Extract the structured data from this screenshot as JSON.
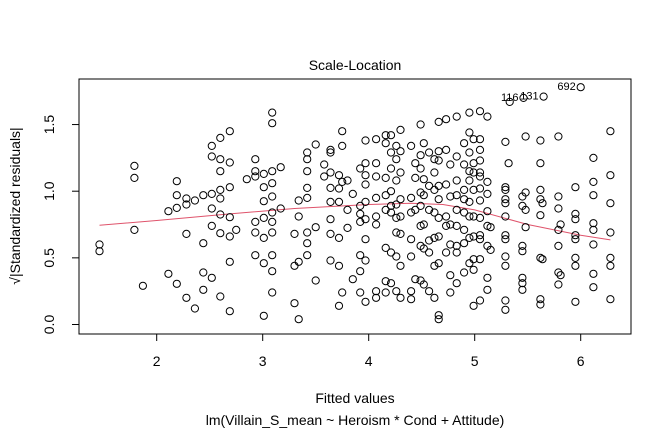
{
  "chart_data": {
    "type": "scatter",
    "title": "Scale-Location",
    "xlabel": "Fitted values",
    "ylabel": "√|Standardized residuals|",
    "subtitle": "lm(Villain_S_mean ~ Heroism * Cond + Attitude)",
    "xlim": [
      1.27,
      6.4
    ],
    "ylim": [
      0.0,
      1.8
    ],
    "xticks": [
      "2",
      "3",
      "4",
      "5",
      "6"
    ],
    "yticks": [
      "0.0",
      "0.5",
      "1.0",
      "1.5"
    ],
    "grid": false,
    "colors": {
      "points": "#000000",
      "smooth": "#DF536B"
    },
    "points": [
      [
        1.46,
        0.6
      ],
      [
        1.46,
        0.55
      ],
      [
        1.79,
        1.19
      ],
      [
        1.79,
        1.1
      ],
      [
        1.79,
        0.71
      ],
      [
        1.87,
        0.29
      ],
      [
        2.11,
        0.85
      ],
      [
        2.11,
        0.38
      ],
      [
        2.19,
        1.075
      ],
      [
        2.19,
        0.97
      ],
      [
        2.19,
        0.875
      ],
      [
        2.19,
        0.305
      ],
      [
        2.28,
        0.945
      ],
      [
        2.28,
        0.9
      ],
      [
        2.28,
        0.68
      ],
      [
        2.28,
        0.2
      ],
      [
        2.36,
        0.93
      ],
      [
        2.36,
        0.12
      ],
      [
        2.44,
        0.97
      ],
      [
        2.44,
        0.61
      ],
      [
        2.44,
        0.39
      ],
      [
        2.44,
        0.26
      ],
      [
        2.52,
        1.34
      ],
      [
        2.52,
        1.26
      ],
      [
        2.52,
        0.98
      ],
      [
        2.52,
        0.87
      ],
      [
        2.52,
        0.74
      ],
      [
        2.52,
        0.35
      ],
      [
        2.6,
        1.4
      ],
      [
        2.6,
        1.24
      ],
      [
        2.6,
        1.15
      ],
      [
        2.6,
        1.01
      ],
      [
        2.6,
        0.945
      ],
      [
        2.6,
        0.825
      ],
      [
        2.6,
        0.685
      ],
      [
        2.6,
        0.21
      ],
      [
        2.69,
        1.45
      ],
      [
        2.69,
        1.215
      ],
      [
        2.69,
        1.03
      ],
      [
        2.69,
        0.805
      ],
      [
        2.69,
        0.66
      ],
      [
        2.69,
        0.47
      ],
      [
        2.69,
        0.1
      ],
      [
        2.75,
        0.71
      ],
      [
        2.85,
        1.09
      ],
      [
        2.93,
        1.24
      ],
      [
        2.93,
        1.15
      ],
      [
        2.93,
        1.11
      ],
      [
        2.93,
        0.77
      ],
      [
        2.93,
        0.69
      ],
      [
        2.93,
        0.52
      ],
      [
        3.01,
        1.13
      ],
      [
        3.01,
        1.03
      ],
      [
        3.01,
        0.925
      ],
      [
        3.01,
        0.8
      ],
      [
        3.01,
        0.65
      ],
      [
        3.01,
        0.46
      ],
      [
        3.01,
        0.065
      ],
      [
        3.09,
        1.59
      ],
      [
        3.09,
        1.51
      ],
      [
        3.09,
        1.15
      ],
      [
        3.09,
        1.06
      ],
      [
        3.09,
        0.96
      ],
      [
        3.09,
        0.84
      ],
      [
        3.09,
        0.77
      ],
      [
        3.09,
        0.69
      ],
      [
        3.09,
        0.52
      ],
      [
        3.09,
        0.4
      ],
      [
        3.09,
        0.24
      ],
      [
        3.17,
        1.18
      ],
      [
        3.17,
        0.87
      ],
      [
        3.3,
        0.68
      ],
      [
        3.3,
        0.44
      ],
      [
        3.3,
        0.16
      ],
      [
        3.34,
        0.93
      ],
      [
        3.34,
        0.81
      ],
      [
        3.34,
        0.47
      ],
      [
        3.34,
        0.04
      ],
      [
        3.42,
        1.29
      ],
      [
        3.42,
        1.24
      ],
      [
        3.42,
        1.15
      ],
      [
        3.42,
        1.025
      ],
      [
        3.42,
        0.95
      ],
      [
        3.42,
        0.69
      ],
      [
        3.42,
        0.61
      ],
      [
        3.42,
        0.52
      ],
      [
        3.5,
        1.35
      ],
      [
        3.5,
        0.73
      ],
      [
        3.5,
        0.33
      ],
      [
        3.58,
        1.2
      ],
      [
        3.58,
        1.11
      ],
      [
        3.64,
        1.31
      ],
      [
        3.64,
        1.29
      ],
      [
        3.64,
        1.14
      ],
      [
        3.64,
        1.025
      ],
      [
        3.64,
        0.92
      ],
      [
        3.64,
        0.79
      ],
      [
        3.64,
        0.68
      ],
      [
        3.64,
        0.48
      ],
      [
        3.72,
        1.12
      ],
      [
        3.72,
        1.02
      ],
      [
        3.72,
        0.92
      ],
      [
        3.72,
        0.65
      ],
      [
        3.72,
        0.44
      ],
      [
        3.72,
        0.14
      ],
      [
        3.75,
        1.45
      ],
      [
        3.75,
        1.34
      ],
      [
        3.75,
        1.07
      ],
      [
        3.75,
        0.24
      ],
      [
        3.8,
        1.08
      ],
      [
        3.8,
        0.86
      ],
      [
        3.8,
        0.725
      ],
      [
        3.85,
        0.98
      ],
      [
        3.85,
        0.34
      ],
      [
        3.92,
        1.17
      ],
      [
        3.92,
        0.89
      ],
      [
        3.92,
        0.83
      ],
      [
        3.92,
        0.77
      ],
      [
        3.92,
        0.52
      ],
      [
        3.92,
        0.4
      ],
      [
        3.92,
        0.24
      ],
      [
        3.97,
        1.38
      ],
      [
        3.97,
        1.21
      ],
      [
        3.97,
        1.12
      ],
      [
        3.97,
        1.05
      ],
      [
        3.97,
        0.92
      ],
      [
        3.97,
        0.79
      ],
      [
        3.97,
        0.64
      ],
      [
        3.97,
        0.48
      ],
      [
        3.97,
        0.17
      ],
      [
        4.07,
        1.39
      ],
      [
        4.07,
        1.21
      ],
      [
        4.07,
        1.11
      ],
      [
        4.07,
        0.95
      ],
      [
        4.07,
        0.81
      ],
      [
        4.07,
        0.75
      ],
      [
        4.07,
        0.25
      ],
      [
        4.07,
        0.2
      ],
      [
        4.16,
        1.42
      ],
      [
        4.16,
        1.36
      ],
      [
        4.16,
        1.1
      ],
      [
        4.16,
        0.97
      ],
      [
        4.16,
        0.86
      ],
      [
        4.16,
        0.575
      ],
      [
        4.16,
        0.325
      ],
      [
        4.16,
        0.24
      ],
      [
        4.21,
        1.42
      ],
      [
        4.21,
        1.29
      ],
      [
        4.21,
        1.17
      ],
      [
        4.21,
        1.0
      ],
      [
        4.21,
        0.89
      ],
      [
        4.21,
        0.84
      ],
      [
        4.21,
        0.54
      ],
      [
        4.21,
        0.31
      ],
      [
        4.26,
        1.34
      ],
      [
        4.26,
        1.24
      ],
      [
        4.26,
        1.08
      ],
      [
        4.26,
        0.9
      ],
      [
        4.26,
        0.8
      ],
      [
        4.26,
        0.69
      ],
      [
        4.26,
        0.51
      ],
      [
        4.26,
        0.25
      ],
      [
        4.3,
        1.46
      ],
      [
        4.3,
        1.3
      ],
      [
        4.3,
        1.14
      ],
      [
        4.3,
        0.94
      ],
      [
        4.3,
        0.81
      ],
      [
        4.3,
        0.68
      ],
      [
        4.3,
        0.44
      ],
      [
        4.3,
        0.2
      ],
      [
        4.4,
        1.34
      ],
      [
        4.4,
        0.95
      ],
      [
        4.4,
        0.84
      ],
      [
        4.4,
        0.64
      ],
      [
        4.4,
        0.51
      ],
      [
        4.4,
        0.25
      ],
      [
        4.4,
        0.19
      ],
      [
        4.44,
        1.21
      ],
      [
        4.44,
        1.1
      ],
      [
        4.44,
        0.86
      ],
      [
        4.44,
        0.34
      ],
      [
        4.49,
        1.5
      ],
      [
        4.49,
        1.27
      ],
      [
        4.49,
        1.17
      ],
      [
        4.49,
        0.99
      ],
      [
        4.49,
        0.89
      ],
      [
        4.49,
        0.74
      ],
      [
        4.49,
        0.59
      ],
      [
        4.49,
        0.33
      ],
      [
        4.52,
        1.36
      ],
      [
        4.52,
        1.09
      ],
      [
        4.52,
        0.97
      ],
      [
        4.52,
        0.75
      ],
      [
        4.52,
        0.57
      ],
      [
        4.52,
        0.3
      ],
      [
        4.57,
        1.29
      ],
      [
        4.57,
        1.04
      ],
      [
        4.57,
        0.86
      ],
      [
        4.57,
        0.63
      ],
      [
        4.57,
        0.54
      ],
      [
        4.57,
        0.25
      ],
      [
        4.62,
        1.24
      ],
      [
        4.62,
        1.14
      ],
      [
        4.62,
        1.01
      ],
      [
        4.62,
        0.84
      ],
      [
        4.62,
        0.65
      ],
      [
        4.62,
        0.44
      ],
      [
        4.62,
        0.2
      ],
      [
        4.66,
        1.52
      ],
      [
        4.66,
        1.3
      ],
      [
        4.66,
        1.23
      ],
      [
        4.66,
        1.04
      ],
      [
        4.66,
        0.94
      ],
      [
        4.66,
        0.8
      ],
      [
        4.66,
        0.66
      ],
      [
        4.66,
        0.46
      ],
      [
        4.66,
        0.07
      ],
      [
        4.66,
        0.04
      ],
      [
        4.73,
        1.54
      ],
      [
        4.73,
        1.31
      ],
      [
        4.73,
        1.05
      ],
      [
        4.73,
        0.81
      ],
      [
        4.73,
        0.74
      ],
      [
        4.73,
        0.54
      ],
      [
        4.77,
        1.2
      ],
      [
        4.77,
        0.96
      ],
      [
        4.77,
        0.75
      ],
      [
        4.77,
        0.6
      ],
      [
        4.77,
        0.37
      ],
      [
        4.77,
        0.24
      ],
      [
        4.83,
        1.56
      ],
      [
        4.83,
        1.26
      ],
      [
        4.83,
        1.08
      ],
      [
        4.83,
        0.97
      ],
      [
        4.83,
        0.86
      ],
      [
        4.83,
        0.74
      ],
      [
        4.83,
        0.59
      ],
      [
        4.83,
        0.54
      ],
      [
        4.83,
        0.31
      ],
      [
        4.9,
        1.36
      ],
      [
        4.9,
        1.2
      ],
      [
        4.9,
        1.01
      ],
      [
        4.9,
        0.94
      ],
      [
        4.9,
        0.84
      ],
      [
        4.9,
        0.71
      ],
      [
        4.9,
        0.61
      ],
      [
        4.9,
        0.39
      ],
      [
        4.95,
        1.59
      ],
      [
        4.95,
        1.44
      ],
      [
        4.95,
        1.29
      ],
      [
        4.95,
        1.15
      ],
      [
        4.95,
        1.08
      ],
      [
        4.95,
        0.92
      ],
      [
        4.95,
        0.81
      ],
      [
        4.95,
        0.65
      ],
      [
        4.95,
        0.46
      ],
      [
        4.99,
        1.39
      ],
      [
        4.99,
        1.21
      ],
      [
        4.99,
        1.14
      ],
      [
        4.99,
        1.01
      ],
      [
        4.99,
        0.81
      ],
      [
        4.99,
        0.66
      ],
      [
        4.99,
        0.49
      ],
      [
        4.99,
        0.41
      ],
      [
        4.99,
        0.14
      ],
      [
        5.05,
        1.6
      ],
      [
        5.05,
        1.39
      ],
      [
        5.05,
        1.31
      ],
      [
        5.05,
        1.23
      ],
      [
        5.05,
        1.14
      ],
      [
        5.05,
        1.11
      ],
      [
        5.05,
        1.02
      ],
      [
        5.05,
        0.93
      ],
      [
        5.05,
        0.8
      ],
      [
        5.05,
        0.67
      ],
      [
        5.05,
        0.64
      ],
      [
        5.05,
        0.49
      ],
      [
        5.05,
        0.18
      ],
      [
        5.12,
        1.56
      ],
      [
        5.12,
        1.07
      ],
      [
        5.12,
        0.98
      ],
      [
        5.12,
        0.85
      ],
      [
        5.12,
        0.74
      ],
      [
        5.12,
        0.59
      ],
      [
        5.12,
        0.35
      ],
      [
        5.12,
        0.26
      ],
      [
        5.15,
        0.73
      ],
      [
        5.15,
        0.56
      ],
      [
        5.29,
        1.37
      ],
      [
        5.29,
        1.03
      ],
      [
        5.29,
        1.01
      ],
      [
        5.29,
        0.94
      ],
      [
        5.29,
        0.91
      ],
      [
        5.29,
        0.81
      ],
      [
        5.29,
        0.67
      ],
      [
        5.29,
        0.64
      ],
      [
        5.29,
        0.51
      ],
      [
        5.29,
        0.44
      ],
      [
        5.29,
        0.18
      ],
      [
        5.29,
        0.11
      ],
      [
        5.32,
        1.21
      ],
      [
        5.45,
        0.96
      ],
      [
        5.45,
        0.89
      ],
      [
        5.45,
        0.59
      ],
      [
        5.45,
        0.55
      ],
      [
        5.45,
        0.35
      ],
      [
        5.45,
        0.31
      ],
      [
        5.45,
        0.26
      ],
      [
        5.48,
        1.41
      ],
      [
        5.48,
        0.99
      ],
      [
        5.48,
        0.86
      ],
      [
        5.48,
        0.73
      ],
      [
        5.62,
        1.38
      ],
      [
        5.62,
        1.21
      ],
      [
        5.62,
        1.01
      ],
      [
        5.62,
        0.94
      ],
      [
        5.62,
        0.82
      ],
      [
        5.62,
        0.5
      ],
      [
        5.62,
        0.19
      ],
      [
        5.62,
        0.15
      ],
      [
        5.64,
        0.91
      ],
      [
        5.64,
        0.49
      ],
      [
        5.79,
        1.41
      ],
      [
        5.79,
        0.96
      ],
      [
        5.79,
        0.87
      ],
      [
        5.79,
        0.71
      ],
      [
        5.79,
        0.59
      ],
      [
        5.79,
        0.39
      ],
      [
        5.79,
        0.3
      ],
      [
        5.81,
        0.75
      ],
      [
        5.81,
        0.37
      ],
      [
        5.95,
        1.03
      ],
      [
        5.95,
        0.83
      ],
      [
        5.95,
        0.79
      ],
      [
        5.95,
        0.67
      ],
      [
        5.95,
        0.64
      ],
      [
        5.95,
        0.5
      ],
      [
        5.95,
        0.44
      ],
      [
        5.95,
        0.17
      ],
      [
        6.12,
        1.25
      ],
      [
        6.12,
        1.07
      ],
      [
        6.12,
        0.97
      ],
      [
        6.12,
        0.76
      ],
      [
        6.12,
        0.71
      ],
      [
        6.12,
        0.6
      ],
      [
        6.12,
        0.38
      ],
      [
        6.12,
        0.28
      ],
      [
        6.28,
        1.45
      ],
      [
        6.28,
        1.12
      ],
      [
        6.28,
        0.91
      ],
      [
        6.28,
        0.69
      ],
      [
        6.28,
        0.5
      ],
      [
        6.28,
        0.44
      ],
      [
        6.28,
        0.19
      ],
      [
        5.33,
        1.67
      ],
      [
        5.46,
        1.7
      ],
      [
        5.65,
        1.71
      ],
      [
        6.0,
        1.78
      ]
    ],
    "labeled_points": [
      {
        "label": "116",
        "x": 5.46,
        "y": 1.7
      },
      {
        "label": "131",
        "x": 5.65,
        "y": 1.71
      },
      {
        "label": "692",
        "x": 6.0,
        "y": 1.78
      }
    ],
    "smooth_line": {
      "x": [
        1.46,
        2.0,
        2.69,
        3.3,
        4.0,
        4.4,
        4.7,
        5.0,
        5.5,
        6.0,
        6.28
      ],
      "y": [
        0.745,
        0.78,
        0.83,
        0.87,
        0.9,
        0.91,
        0.9,
        0.86,
        0.75,
        0.67,
        0.635
      ]
    }
  }
}
